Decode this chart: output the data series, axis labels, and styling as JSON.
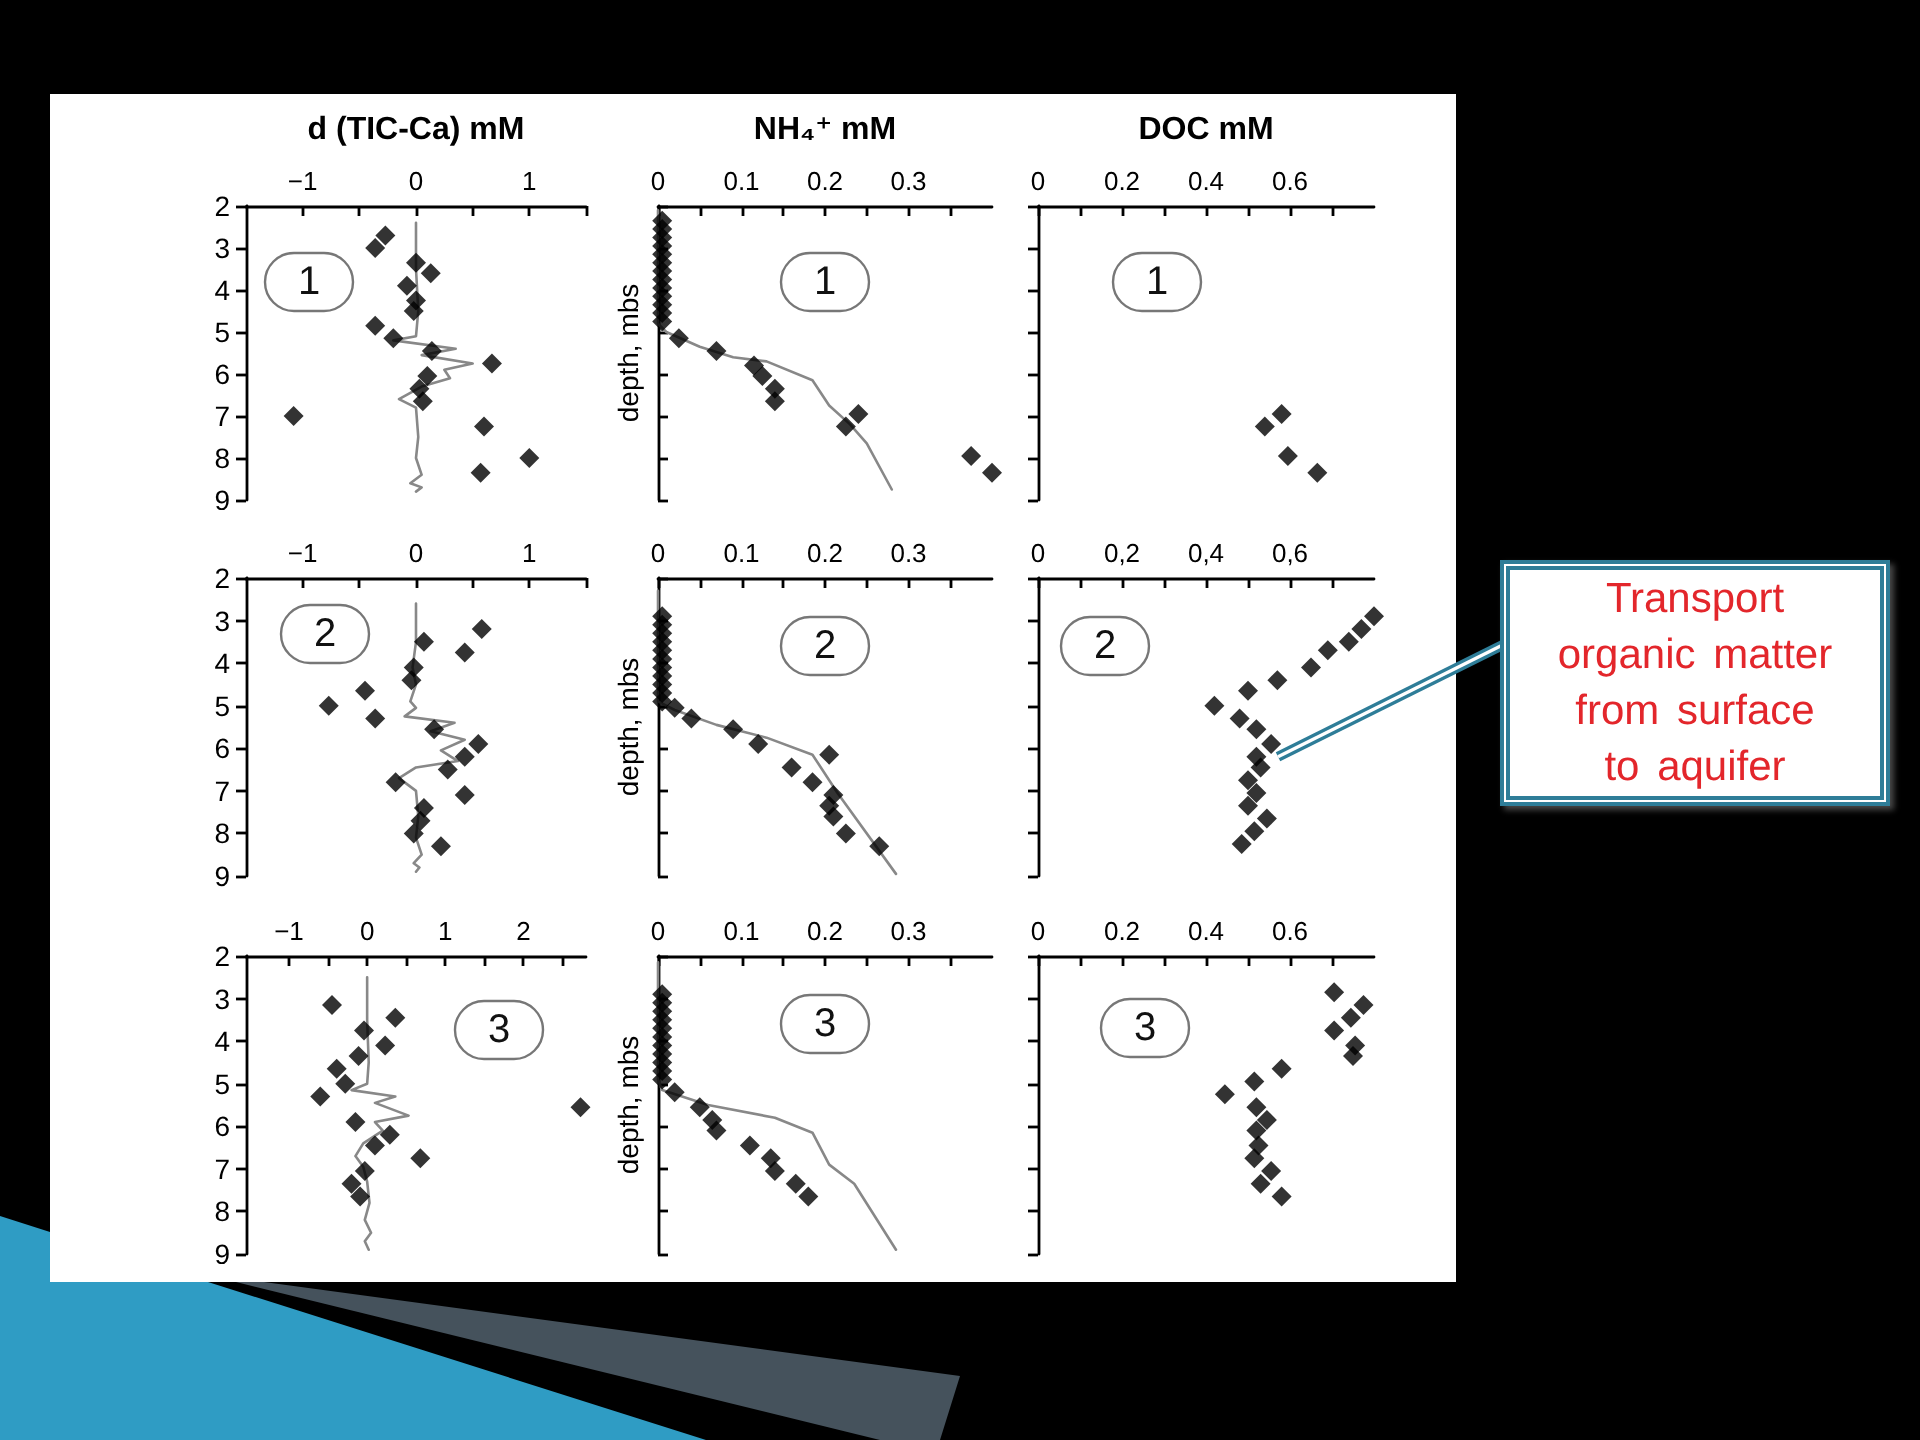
{
  "chart_data": [
    {
      "type": "scatter",
      "xlabel": "d (TIC-Ca) mM",
      "xlim": [
        -1.5,
        1.5
      ],
      "xticks": [
        {
          "value": -1,
          "label": "−1"
        },
        {
          "value": -0.5,
          "label": null
        },
        0,
        {
          "value": 0.5,
          "label": null
        },
        1,
        {
          "value": 1.5,
          "label": null
        }
      ],
      "ylim": [
        9,
        2
      ],
      "yticks": [
        2,
        3,
        4,
        5,
        6,
        7,
        8,
        9
      ],
      "annotations": [
        "1"
      ],
      "series": [
        {
          "marker": "diamond",
          "color": "#000000",
          "x": [
            -0.27,
            -0.36,
            0,
            0.13,
            -0.08,
            0,
            -0.02,
            -0.36,
            -0.2,
            0.14,
            0.67,
            0.1,
            0.03,
            0.06,
            -1.08,
            0.6,
            1.0,
            0.57
          ],
          "values": [
            2.7,
            3.0,
            3.35,
            3.6,
            3.9,
            4.25,
            4.5,
            4.85,
            5.15,
            5.45,
            5.75,
            6.05,
            6.35,
            6.65,
            7.0,
            7.25,
            8.0,
            8.35
          ]
        },
        {
          "type": "line",
          "marker": "none",
          "color": "#888888",
          "x": [
            0,
            0,
            0.02,
            0,
            -0.2,
            0.35,
            0.05,
            0.5,
            0.25,
            0.3,
            0.05,
            -0.15,
            0,
            0.02,
            0,
            0.05,
            -0.05,
            0.05,
            0
          ],
          "values": [
            2.4,
            3.5,
            4.5,
            5.1,
            5.2,
            5.4,
            5.55,
            5.75,
            5.9,
            6.1,
            6.3,
            6.6,
            6.8,
            7.5,
            8.0,
            8.4,
            8.6,
            8.7,
            8.8
          ]
        }
      ]
    },
    {
      "type": "scatter",
      "xlabel": "NH₄⁺ mM",
      "ylabel": "depth, mbs",
      "tick_labels": "x",
      "xlim": [
        0,
        0.4
      ],
      "xticks": [
        0,
        {
          "value": 0.05,
          "label": null
        },
        0.1,
        {
          "value": 0.15,
          "label": null
        },
        0.2,
        {
          "value": 0.25,
          "label": null
        },
        0.3,
        {
          "value": 0.35,
          "label": null
        }
      ],
      "ylim": [
        9,
        2
      ],
      "yticks": [
        2,
        3,
        4,
        5,
        6,
        7,
        8,
        9
      ],
      "annotations": [
        "1"
      ],
      "series": [
        {
          "marker": "diamond",
          "color": "#000000",
          "x": [
            0.005,
            0.005,
            0.005,
            0.005,
            0.005,
            0.005,
            0.005,
            0.005,
            0.005,
            0.005,
            0.005,
            0.005,
            0.005,
            0.025,
            0.07,
            0.115,
            0.125,
            0.14,
            0.14,
            0.24,
            0.225,
            0.375,
            0.4
          ],
          "values": [
            2.35,
            2.55,
            2.75,
            2.95,
            3.15,
            3.35,
            3.55,
            3.75,
            3.95,
            4.15,
            4.35,
            4.55,
            4.75,
            5.15,
            5.45,
            5.8,
            6.05,
            6.35,
            6.65,
            6.95,
            7.25,
            7.95,
            8.35
          ]
        },
        {
          "type": "line",
          "marker": "none",
          "color": "#888888",
          "x": [
            0,
            0,
            0.01,
            0.05,
            0.09,
            0.13,
            0.185,
            0.205,
            0.23,
            0.25,
            0.28
          ],
          "values": [
            2.1,
            4.8,
            5.0,
            5.35,
            5.6,
            5.7,
            6.15,
            6.75,
            7.2,
            7.65,
            8.75
          ]
        }
      ]
    },
    {
      "type": "scatter",
      "xlabel": "DOC mM",
      "tick_labels": "x",
      "xlim": [
        0,
        0.8
      ],
      "xticks": [
        0,
        {
          "value": 0.1,
          "label": null
        },
        0.2,
        {
          "value": 0.3,
          "label": null
        },
        0.4,
        {
          "value": 0.5,
          "label": null
        },
        0.6,
        {
          "value": 0.7,
          "label": null
        }
      ],
      "ylim": [
        9,
        2
      ],
      "yticks": [
        2,
        3,
        4,
        5,
        6,
        7,
        8,
        9
      ],
      "annotations": [
        "1"
      ],
      "series": [
        {
          "marker": "diamond",
          "color": "#000000",
          "x": [
            0.58,
            0.54,
            0.595,
            0.665
          ],
          "values": [
            6.95,
            7.25,
            7.95,
            8.35
          ]
        }
      ]
    },
    {
      "type": "scatter",
      "xlim": [
        -1.5,
        1.5
      ],
      "xticks": [
        {
          "value": -1,
          "label": "−1"
        },
        {
          "value": -0.5,
          "label": null
        },
        0,
        {
          "value": 0.5,
          "label": null
        },
        1,
        {
          "value": 1.5,
          "label": null
        }
      ],
      "ylim": [
        9,
        2
      ],
      "yticks": [
        2,
        3,
        4,
        5,
        6,
        7,
        8,
        9
      ],
      "annotations": [
        "2"
      ],
      "series": [
        {
          "marker": "diamond",
          "color": "#000000",
          "x": [
            0.58,
            0.07,
            0.43,
            -0.02,
            -0.04,
            -0.45,
            -0.77,
            -0.36,
            0.16,
            0.55,
            0.43,
            0.28,
            -0.18,
            0.43,
            0.07,
            0.04,
            -0.02,
            0.22
          ],
          "values": [
            3.2,
            3.5,
            3.75,
            4.1,
            4.4,
            4.65,
            5.0,
            5.3,
            5.55,
            5.9,
            6.2,
            6.5,
            6.8,
            7.1,
            7.4,
            7.7,
            8.0,
            8.3
          ]
        },
        {
          "type": "line",
          "marker": "none",
          "color": "#888888",
          "x": [
            0,
            0,
            -0.03,
            0,
            -0.05,
            0,
            -0.1,
            0.34,
            0.13,
            0.43,
            0.22,
            0.37,
            0,
            -0.15,
            0,
            0.02,
            0,
            0.05,
            -0.02,
            0.03,
            0
          ],
          "values": [
            2.6,
            3.5,
            4.1,
            4.5,
            4.9,
            5.05,
            5.25,
            5.4,
            5.6,
            5.8,
            6.05,
            6.3,
            6.45,
            6.7,
            7.0,
            7.6,
            8.1,
            8.5,
            8.7,
            8.8,
            8.9
          ]
        }
      ]
    },
    {
      "type": "scatter",
      "ylabel": "depth, mbs",
      "tick_labels": "x",
      "xlim": [
        0,
        0.4
      ],
      "xticks": [
        0,
        {
          "value": 0.05,
          "label": null
        },
        0.1,
        {
          "value": 0.15,
          "label": null
        },
        0.2,
        {
          "value": 0.25,
          "label": null
        },
        0.3,
        {
          "value": 0.35,
          "label": null
        }
      ],
      "ylim": [
        9,
        2
      ],
      "yticks": [
        2,
        3,
        4,
        5,
        6,
        7,
        8,
        9
      ],
      "annotations": [
        "2"
      ],
      "series": [
        {
          "marker": "diamond",
          "color": "#000000",
          "x": [
            0.005,
            0.005,
            0.005,
            0.005,
            0.005,
            0.005,
            0.005,
            0.005,
            0.005,
            0.005,
            0.005,
            0.02,
            0.04,
            0.09,
            0.12,
            0.205,
            0.16,
            0.185,
            0.21,
            0.205,
            0.21,
            0.225,
            0.265
          ],
          "values": [
            2.9,
            3.1,
            3.3,
            3.5,
            3.7,
            3.9,
            4.1,
            4.3,
            4.5,
            4.7,
            4.9,
            5.05,
            5.3,
            5.55,
            5.9,
            6.15,
            6.45,
            6.8,
            7.1,
            7.35,
            7.6,
            8.0,
            8.3
          ]
        },
        {
          "type": "line",
          "marker": "none",
          "color": "#888888",
          "x": [
            0,
            0,
            0.02,
            0.07,
            0.13,
            0.185,
            0.215,
            0.285
          ],
          "values": [
            2.3,
            4.9,
            5.1,
            5.45,
            5.75,
            6.15,
            7.05,
            8.95
          ]
        }
      ]
    },
    {
      "type": "scatter",
      "tick_labels": "x",
      "xlim": [
        0,
        0.8
      ],
      "xticks": [
        0,
        {
          "value": 0.1,
          "label": null
        },
        {
          "value": 0.2,
          "label": "0,2"
        },
        {
          "value": 0.3,
          "label": null
        },
        {
          "value": 0.4,
          "label": "0,4"
        },
        {
          "value": 0.5,
          "label": null
        },
        {
          "value": 0.6,
          "label": "0,6"
        },
        {
          "value": 0.7,
          "label": null
        }
      ],
      "ylim": [
        9,
        2
      ],
      "yticks": [
        2,
        3,
        4,
        5,
        6,
        7,
        8,
        9
      ],
      "annotations": [
        "2",
        {
          "text": "Transport organic matter from surface to aquifer",
          "x": 0.57,
          "y": 6.2
        }
      ],
      "series": [
        {
          "marker": "diamond",
          "color": "#000000",
          "x": [
            0.8,
            0.77,
            0.74,
            0.69,
            0.65,
            0.57,
            0.5,
            0.42,
            0.48,
            0.52,
            0.555,
            0.52,
            0.53,
            0.5,
            0.52,
            0.5,
            0.545,
            0.515,
            0.485
          ],
          "values": [
            2.9,
            3.2,
            3.5,
            3.7,
            4.1,
            4.4,
            4.65,
            5.0,
            5.3,
            5.55,
            5.9,
            6.2,
            6.45,
            6.75,
            7.05,
            7.35,
            7.65,
            7.95,
            8.25
          ]
        }
      ]
    },
    {
      "type": "scatter",
      "xlim": [
        -1.55,
        2.8
      ],
      "xticks": [
        {
          "value": -1,
          "label": "−1"
        },
        {
          "value": -0.5,
          "label": null
        },
        0,
        {
          "value": 0.5,
          "label": null
        },
        1,
        {
          "value": 1.5,
          "label": null
        },
        2,
        {
          "value": 2.5,
          "label": null
        }
      ],
      "ylim": [
        9,
        2
      ],
      "yticks": [
        2,
        3,
        4,
        5,
        6,
        7,
        8,
        9
      ],
      "annotations": [
        "3"
      ],
      "series": [
        {
          "marker": "diamond",
          "color": "#000000",
          "x": [
            -0.45,
            0.36,
            -0.04,
            0.23,
            -0.11,
            -0.39,
            -0.28,
            -0.6,
            2.73,
            -0.15,
            0.29,
            0.1,
            0.68,
            -0.03,
            -0.2,
            -0.09
          ],
          "values": [
            3.15,
            3.45,
            3.75,
            4.1,
            4.35,
            4.65,
            5.0,
            5.3,
            5.55,
            5.9,
            6.2,
            6.45,
            6.75,
            7.05,
            7.35,
            7.65
          ]
        },
        {
          "type": "line",
          "marker": "none",
          "color": "#888888",
          "x": [
            0,
            0,
            0.02,
            0,
            -0.2,
            0.36,
            0.1,
            0.53,
            0.1,
            0.2,
            -0.05,
            -0.15,
            -0.05,
            0,
            0.03,
            -0.03,
            0.05,
            -0.03,
            0.02
          ],
          "values": [
            2.5,
            3.5,
            4.5,
            5.0,
            5.15,
            5.3,
            5.45,
            5.75,
            5.9,
            6.1,
            6.4,
            6.7,
            6.95,
            7.3,
            7.8,
            8.2,
            8.5,
            8.7,
            8.9
          ]
        }
      ]
    },
    {
      "type": "scatter",
      "ylabel": "depth, mbs",
      "tick_labels": "x",
      "xlim": [
        0,
        0.4
      ],
      "xticks": [
        0,
        {
          "value": 0.05,
          "label": null
        },
        0.1,
        {
          "value": 0.15,
          "label": null
        },
        0.2,
        {
          "value": 0.25,
          "label": null
        },
        0.3,
        {
          "value": 0.35,
          "label": null
        }
      ],
      "ylim": [
        9,
        2
      ],
      "yticks": [
        2,
        3,
        4,
        5,
        6,
        7,
        8,
        9
      ],
      "annotations": [
        "3"
      ],
      "series": [
        {
          "marker": "diamond",
          "color": "#000000",
          "x": [
            0.005,
            0.005,
            0.005,
            0.005,
            0.005,
            0.005,
            0.005,
            0.005,
            0.005,
            0.005,
            0.005,
            0.02,
            0.05,
            0.065,
            0.07,
            0.11,
            0.135,
            0.14,
            0.165,
            0.18
          ],
          "values": [
            2.9,
            3.1,
            3.3,
            3.5,
            3.7,
            3.9,
            4.1,
            4.3,
            4.5,
            4.7,
            4.9,
            5.2,
            5.55,
            5.85,
            6.1,
            6.45,
            6.75,
            7.05,
            7.35,
            7.65
          ]
        },
        {
          "type": "line",
          "marker": "none",
          "color": "#888888",
          "x": [
            0,
            0,
            0.005,
            0.06,
            0.14,
            0.185,
            0.205,
            0.235,
            0.285
          ],
          "values": [
            2.15,
            4.9,
            5.15,
            5.5,
            5.8,
            6.15,
            6.9,
            7.35,
            8.9
          ]
        }
      ]
    },
    {
      "type": "scatter",
      "tick_labels": "x",
      "xlim": [
        0,
        0.8
      ],
      "xticks": [
        0,
        {
          "value": 0.1,
          "label": null
        },
        0.2,
        {
          "value": 0.3,
          "label": null
        },
        0.4,
        {
          "value": 0.5,
          "label": null
        },
        0.6,
        {
          "value": 0.7,
          "label": null
        }
      ],
      "ylim": [
        9,
        2
      ],
      "yticks": [
        2,
        3,
        4,
        5,
        6,
        7,
        8,
        9
      ],
      "annotations": [
        "3"
      ],
      "series": [
        {
          "marker": "diamond",
          "color": "#000000",
          "x": [
            0.705,
            0.775,
            0.745,
            0.705,
            0.755,
            0.75,
            0.58,
            0.515,
            0.445,
            0.52,
            0.545,
            0.52,
            0.525,
            0.515,
            0.555,
            0.53,
            0.58
          ],
          "values": [
            2.85,
            3.15,
            3.45,
            3.75,
            4.1,
            4.35,
            4.65,
            4.95,
            5.25,
            5.55,
            5.85,
            6.1,
            6.45,
            6.75,
            7.05,
            7.35,
            7.65
          ]
        }
      ]
    }
  ]
}
